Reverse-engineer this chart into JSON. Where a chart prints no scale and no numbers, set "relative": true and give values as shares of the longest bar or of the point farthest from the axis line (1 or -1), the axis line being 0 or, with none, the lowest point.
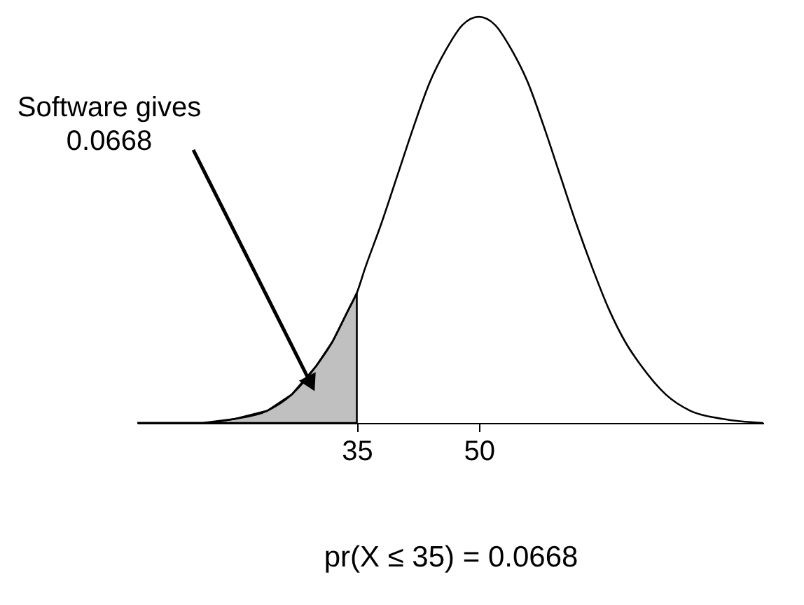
{
  "chart_data": {
    "type": "line",
    "relative": true,
    "xlabel": "pr(X ≤ 35) = 0.0668",
    "xlim": [
      8,
      85
    ],
    "xticks": [
      35,
      50
    ],
    "tick_labels": "x",
    "grid": false,
    "annotations": [
      "Software gives\n0.0668"
    ],
    "series": [
      {
        "type": "area",
        "color": "#c0c0c0",
        "x": [
          8,
          12,
          16,
          20,
          24,
          27,
          30,
          32,
          34,
          35
        ],
        "values": [
          0.0,
          0.0,
          0.0,
          0.01,
          0.03,
          0.07,
          0.14,
          0.2,
          0.28,
          0.32
        ]
      },
      {
        "type": "line",
        "color": "#000000",
        "x": [
          8,
          12,
          16,
          20,
          24,
          27,
          30,
          32,
          34,
          35,
          36,
          38,
          40,
          42,
          44,
          46,
          48,
          50,
          52,
          54,
          56,
          58,
          60,
          62,
          64,
          66,
          68,
          70,
          73,
          76,
          80,
          85
        ],
        "values": [
          0.0,
          0.0,
          0.0,
          0.01,
          0.03,
          0.07,
          0.14,
          0.2,
          0.28,
          0.32,
          0.38,
          0.49,
          0.61,
          0.73,
          0.84,
          0.92,
          0.98,
          1.0,
          0.98,
          0.92,
          0.84,
          0.73,
          0.61,
          0.49,
          0.38,
          0.28,
          0.2,
          0.14,
          0.07,
          0.03,
          0.01,
          0.0
        ]
      }
    ]
  }
}
